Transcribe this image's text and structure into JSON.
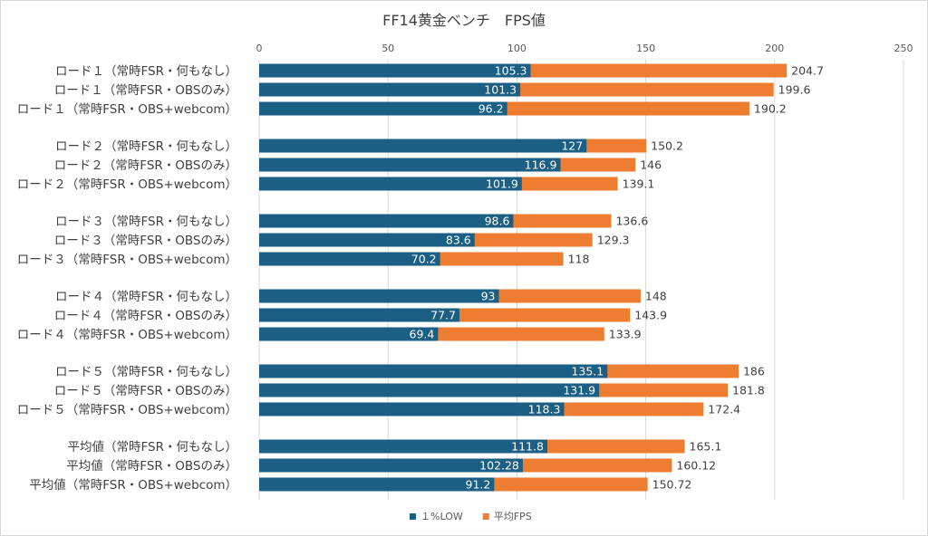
{
  "chart_data": {
    "type": "bar",
    "orientation": "horizontal",
    "stacking": "overlay",
    "title": "FF14黄金ベンチ　FPS値",
    "xlim": [
      0,
      250
    ],
    "xticks": [
      0,
      50,
      100,
      150,
      200,
      250
    ],
    "grid": true,
    "legend_position": "bottom",
    "groups": [
      {
        "categories": [
          "ロード１（常時FSR・何もなし）",
          "ロード１（常時FSR・OBSのみ）",
          "ロード１（常時FSR・OBS+webcom）"
        ],
        "low1": [
          105.3,
          101.3,
          96.2
        ],
        "avg": [
          204.7,
          199.6,
          190.2
        ]
      },
      {
        "categories": [
          "ロード２（常時FSR・何もなし）",
          "ロード２（常時FSR・OBSのみ）",
          "ロード２（常時FSR・OBS+webcom）"
        ],
        "low1": [
          127,
          116.9,
          101.9
        ],
        "avg": [
          150.2,
          146,
          139.1
        ]
      },
      {
        "categories": [
          "ロード３（常時FSR・何もなし）",
          "ロード３（常時FSR・OBSのみ）",
          "ロード３（常時FSR・OBS+webcom）"
        ],
        "low1": [
          98.6,
          83.6,
          70.2
        ],
        "avg": [
          136.6,
          129.3,
          118
        ]
      },
      {
        "categories": [
          "ロード４（常時FSR・何もなし）",
          "ロード４（常時FSR・OBSのみ）",
          "ロード４（常時FSR・OBS+webcom）"
        ],
        "low1": [
          93,
          77.7,
          69.4
        ],
        "avg": [
          148,
          143.9,
          133.9
        ]
      },
      {
        "categories": [
          "ロード５（常時FSR・何もなし）",
          "ロード５（常時FSR・OBSのみ）",
          "ロード５（常時FSR・OBS+webcom）"
        ],
        "low1": [
          135.1,
          131.9,
          118.3
        ],
        "avg": [
          186,
          181.8,
          172.4
        ]
      },
      {
        "categories": [
          "平均値（常時FSR・何もなし）",
          "平均値（常時FSR・OBSのみ）",
          "平均値（常時FSR・OBS+webcom）"
        ],
        "low1": [
          111.8,
          102.28,
          91.2
        ],
        "avg": [
          165.1,
          160.12,
          150.72
        ]
      }
    ],
    "series": [
      {
        "key": "low1",
        "name": "１%LOW",
        "color": "#1b5f84"
      },
      {
        "key": "avg",
        "name": "平均FPS",
        "color": "#ed7d31"
      }
    ]
  }
}
